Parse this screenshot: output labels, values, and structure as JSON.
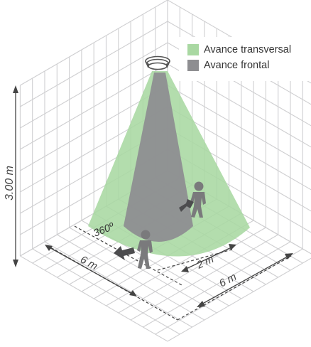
{
  "legend": {
    "items": [
      {
        "label": "Avance transversal",
        "color": "#a9d8a2"
      },
      {
        "label": "Avance frontal",
        "color": "#8e8e91"
      }
    ]
  },
  "dimensions": {
    "height_label": "3.00 m",
    "angle_label": "360º",
    "width_label_left": "6 m",
    "inner_label": "2 m",
    "width_label_right": "6 m"
  },
  "colors": {
    "grid": "#cfcfd1",
    "transversal_cone": "#a9d8a2",
    "frontal_cone": "#8e8e91",
    "person": "#7a7a7c",
    "arrow": "#4c4c4e",
    "dimension_line": "#444444"
  },
  "icons": [
    "sensor-icon",
    "person-icon",
    "direction-arrow-icon"
  ]
}
